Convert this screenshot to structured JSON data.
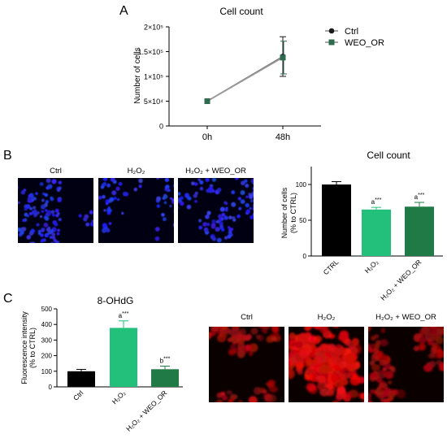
{
  "panels": {
    "A": "A",
    "B": "B",
    "C": "C"
  },
  "chart_data": [
    {
      "type": "line",
      "title": "Cell count",
      "ylabel": "Number of cells",
      "x": [
        "0h",
        "48h"
      ],
      "ylim": [
        0,
        200000
      ],
      "yticks": [
        "0",
        "5×10⁴",
        "1×10⁵",
        "1.5×10⁵",
        "2×10⁵"
      ],
      "ytick_values": [
        0,
        50000,
        100000,
        150000,
        200000
      ],
      "legend_position": "right",
      "series": [
        {
          "name": "Ctrl",
          "color": "#1a1a1a",
          "marker": "circle",
          "values": [
            50000,
            140000
          ],
          "error": [
            0,
            40000
          ]
        },
        {
          "name": "WEO_OR",
          "color": "#2e6b4f",
          "marker": "square",
          "values": [
            50000,
            138000
          ],
          "error": [
            0,
            33000
          ]
        }
      ]
    },
    {
      "type": "bar",
      "title": "Cell count",
      "ylabel_lines": [
        "Number of cells",
        "(% to CTRL)"
      ],
      "categories": [
        "CTRL",
        "H₂O₂",
        "H₂O₂ + WEO_OR"
      ],
      "values": [
        100,
        65,
        69
      ],
      "errors": [
        4,
        3,
        6
      ],
      "annotations": [
        "",
        "a***",
        "a***"
      ],
      "colors": [
        "#000000",
        "#22c07a",
        "#1f7a45"
      ],
      "ylim": [
        0,
        125
      ],
      "yticks": [
        0,
        50,
        100
      ]
    },
    {
      "type": "bar",
      "title": "8-OHdG",
      "ylabel_lines": [
        "Fluorescence intensity",
        "(% to CTRL)"
      ],
      "categories": [
        "Ctrl",
        "H₂O₂",
        "H₂O₂ + WEO_OR"
      ],
      "values": [
        100,
        378,
        113
      ],
      "errors": [
        12,
        45,
        20
      ],
      "annotations": [
        "",
        "a***",
        "b***"
      ],
      "colors": [
        "#000000",
        "#22c07a",
        "#1f7a45"
      ],
      "ylim": [
        0,
        500
      ],
      "yticks": [
        0,
        100,
        200,
        300,
        400,
        500
      ]
    }
  ],
  "micrographs_B": {
    "labels": [
      "Ctrl",
      "H₂O₂",
      "H₂O₂ + WEO_OR"
    ],
    "stain_color": "#2b33ff"
  },
  "micrographs_C": {
    "labels": [
      "Ctrl",
      "H₂O₂",
      "H₂O₂ + WEO_OR"
    ],
    "stain_color": "#e01010"
  }
}
